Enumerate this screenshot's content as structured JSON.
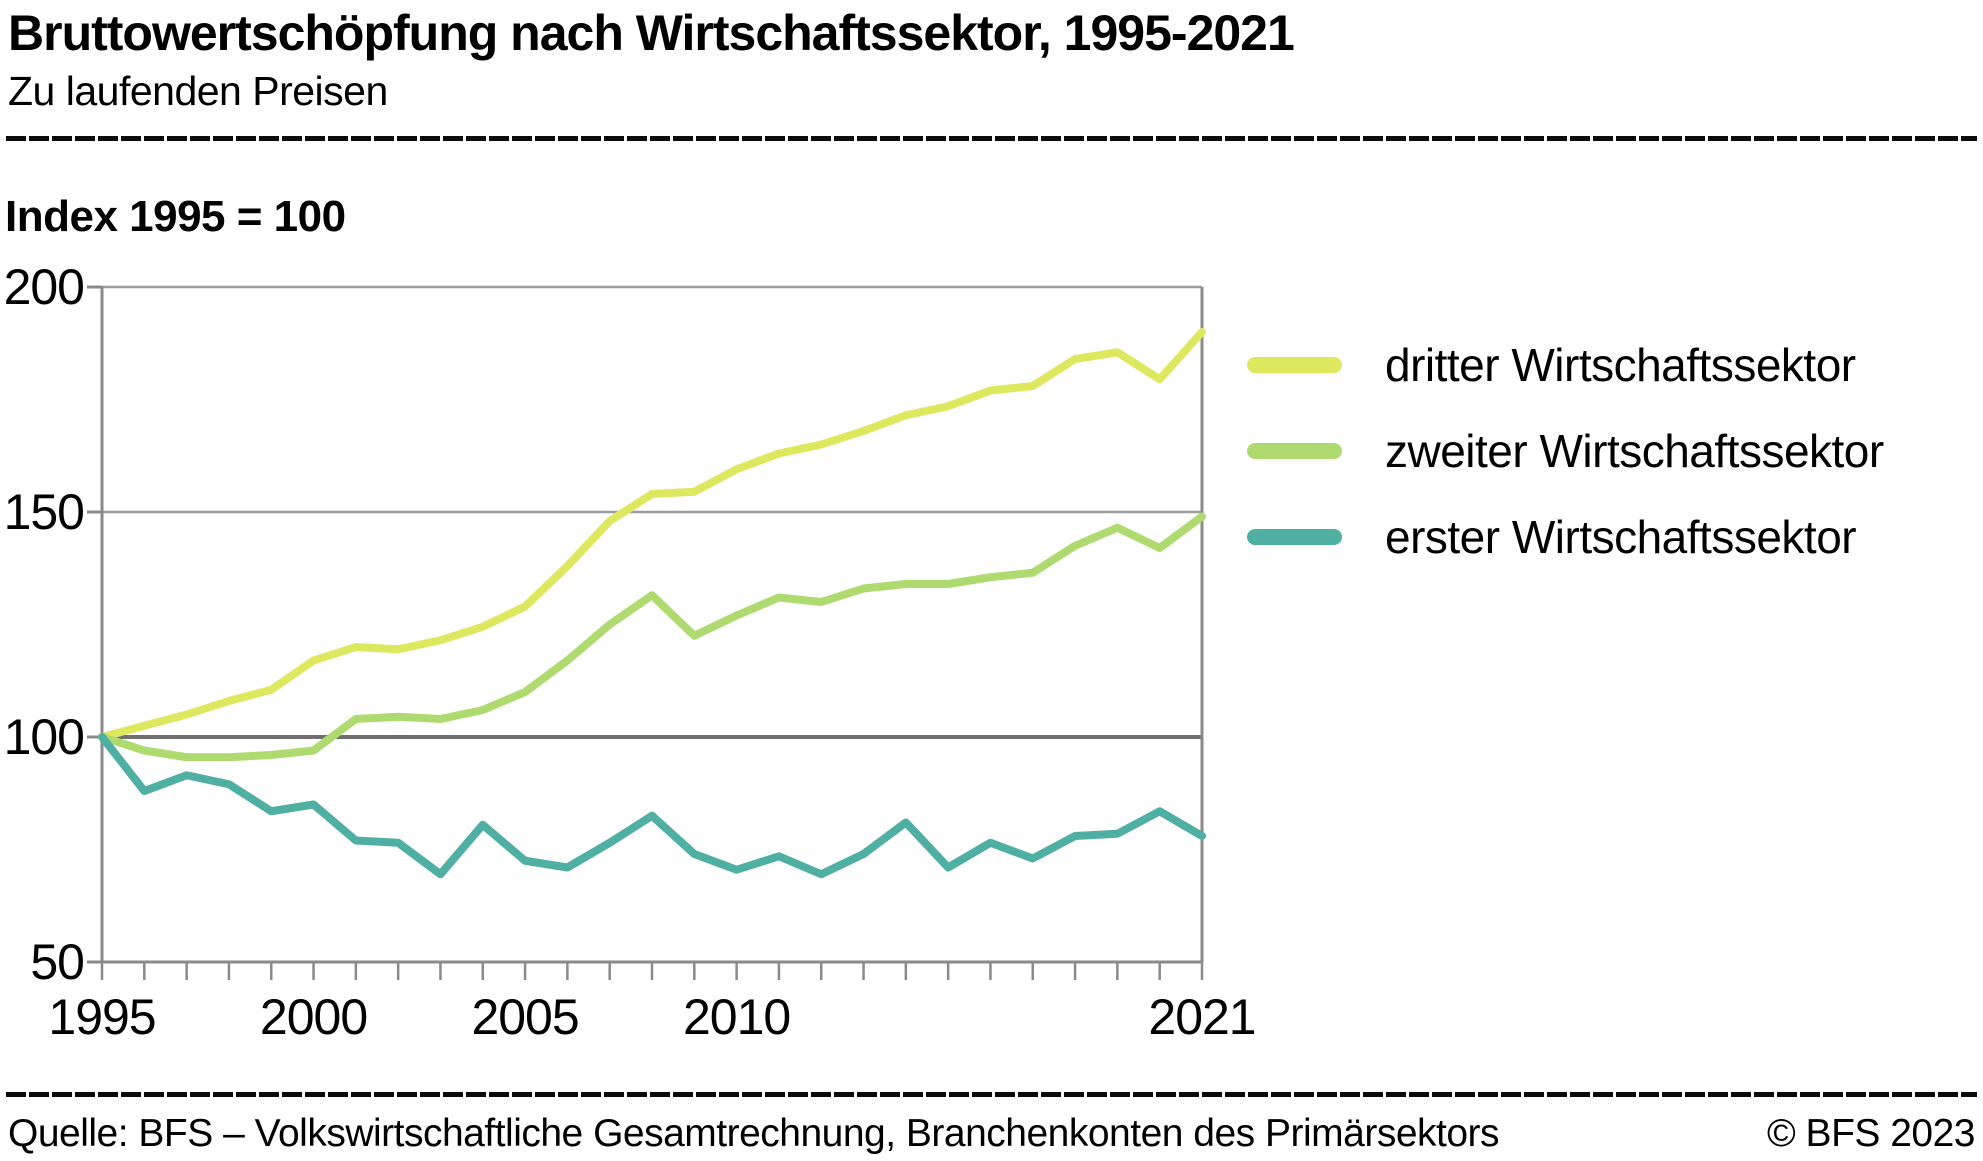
{
  "header": {
    "title": "Bruttowertschöpfung nach Wirtschaftssektor, 1995-2021",
    "subtitle": "Zu laufenden Preisen"
  },
  "index_label": "Index 1995 = 100",
  "chart_data": {
    "type": "line",
    "title": "Bruttowertschöpfung nach Wirtschaftssektor, 1995-2021",
    "subtitle": "Zu laufenden Preisen",
    "unit_note": "Index 1995 = 100",
    "grid": "horizontal",
    "legend_position": "right",
    "xlim": [
      1995,
      2021
    ],
    "ylim": [
      50,
      200
    ],
    "yticks": [
      200,
      150,
      100,
      50
    ],
    "xtick_labels": [
      {
        "year": 1995,
        "label": "1995"
      },
      {
        "year": 2000,
        "label": "2000"
      },
      {
        "year": 2005,
        "label": "2005"
      },
      {
        "year": 2010,
        "label": "2010"
      },
      {
        "year": 2021,
        "label": "2021"
      }
    ],
    "x": [
      1995,
      1996,
      1997,
      1998,
      1999,
      2000,
      2001,
      2002,
      2003,
      2004,
      2005,
      2006,
      2007,
      2008,
      2009,
      2010,
      2011,
      2012,
      2013,
      2014,
      2015,
      2016,
      2017,
      2018,
      2019,
      2020,
      2021
    ],
    "series": [
      {
        "name": "dritter Wirtschaftssektor",
        "color": "#dee85f",
        "values": [
          100,
          102.5,
          105,
          108,
          110.5,
          117,
          120,
          119.5,
          121.5,
          124.5,
          129,
          138,
          148,
          154,
          154.5,
          159.5,
          163,
          165,
          168,
          171.5,
          173.5,
          177,
          178,
          184,
          185.5,
          179.5,
          190
        ]
      },
      {
        "name": "zweiter Wirtschaftssektor",
        "color": "#afda70",
        "values": [
          100,
          97,
          95.5,
          95.5,
          96,
          97,
          104,
          104.5,
          104,
          106,
          110,
          117,
          125,
          131.5,
          122.5,
          127,
          131,
          130,
          133,
          134,
          134,
          135.5,
          136.5,
          142.5,
          146.5,
          142,
          149
        ]
      },
      {
        "name": "erster Wirtschaftssektor",
        "color": "#4fafa2",
        "values": [
          100,
          88,
          91.5,
          89.5,
          83.5,
          85,
          77,
          76.5,
          69.5,
          80.5,
          72.5,
          71,
          76.5,
          82.5,
          74,
          70.5,
          73.5,
          69.5,
          74,
          81,
          71,
          76.5,
          73,
          78,
          78.5,
          83.5,
          78
        ]
      }
    ],
    "colors": {
      "grid_light": "#9c9c9c",
      "grid_baseline_100": "#6f6f6f",
      "axis": "#8a8a8a",
      "rule": "#0b0b0b",
      "text": "#000000"
    }
  },
  "footer": {
    "source": "Quelle: BFS – Volkswirtschaftliche Gesamtrechnung, Branchenkonten des Primärsektors",
    "copyright": "© BFS 2023"
  }
}
